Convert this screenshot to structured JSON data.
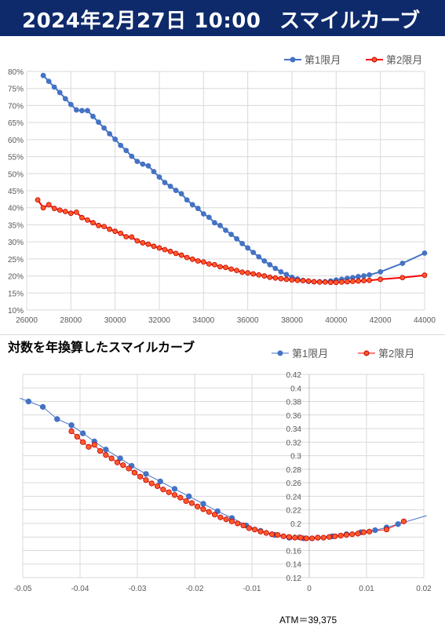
{
  "header": {
    "date": "2024年2月27日 10:00",
    "title": "スマイルカーブ"
  },
  "colors": {
    "series1": "#4472c4",
    "series2": "#ff0000",
    "series2_fill": "#ff5a2a",
    "header_bg": "#0e2a6b"
  },
  "chart_data": [
    {
      "type": "line",
      "title": "",
      "legend_position": "top-right",
      "grid": true,
      "xlim": [
        26000,
        44000
      ],
      "ylim": [
        10,
        80
      ],
      "x_ticks": [
        26000,
        28000,
        30000,
        32000,
        34000,
        36000,
        38000,
        40000,
        42000,
        44000
      ],
      "x_tick_labels": [
        "26000",
        "28000",
        "30000",
        "32000",
        "34000",
        "36000",
        "38000",
        "40000",
        "42000",
        "44000"
      ],
      "y_ticks": [
        10,
        15,
        20,
        25,
        30,
        35,
        40,
        45,
        50,
        55,
        60,
        65,
        70,
        75,
        80
      ],
      "y_tick_labels": [
        "10%",
        "15%",
        "20%",
        "25%",
        "30%",
        "35%",
        "40%",
        "45%",
        "50%",
        "55%",
        "60%",
        "65%",
        "70%",
        "75%",
        "80%"
      ],
      "series": [
        {
          "name": "第1限月",
          "x": [
            26750,
            27000,
            27250,
            27500,
            27750,
            28000,
            28250,
            28500,
            28750,
            29000,
            29250,
            29500,
            29750,
            30000,
            30250,
            30500,
            30750,
            31000,
            31250,
            31500,
            31750,
            32000,
            32250,
            32500,
            32750,
            33000,
            33250,
            33500,
            33750,
            34000,
            34250,
            34500,
            34750,
            35000,
            35250,
            35500,
            35750,
            36000,
            36250,
            36500,
            36750,
            37000,
            37250,
            37500,
            37750,
            38000,
            38250,
            38500,
            38750,
            39000,
            39250,
            39500,
            39750,
            40000,
            40250,
            40500,
            40750,
            41000,
            41250,
            41500,
            42000,
            43000,
            44000
          ],
          "values": [
            78.8,
            77.1,
            75.4,
            73.8,
            72.0,
            70.3,
            68.7,
            68.5,
            68.5,
            66.8,
            65.1,
            63.4,
            61.7,
            60.1,
            58.3,
            56.8,
            55.1,
            53.6,
            52.8,
            52.3,
            50.6,
            49.0,
            47.4,
            46.3,
            45.1,
            44.1,
            42.3,
            40.9,
            39.8,
            38.2,
            37.2,
            35.6,
            34.8,
            33.4,
            32.2,
            30.9,
            29.5,
            28.2,
            26.9,
            25.6,
            24.4,
            23.3,
            22.2,
            21.2,
            20.4,
            19.6,
            19.1,
            18.7,
            18.4,
            18.3,
            18.3,
            18.3,
            18.5,
            18.8,
            19.0,
            19.3,
            19.5,
            19.8,
            20.0,
            20.3,
            21.2,
            23.7,
            26.7
          ]
        },
        {
          "name": "第2限月",
          "x": [
            26500,
            26750,
            27000,
            27250,
            27500,
            27750,
            28000,
            28250,
            28500,
            28750,
            29000,
            29250,
            29500,
            29750,
            30000,
            30250,
            30500,
            30750,
            31000,
            31250,
            31500,
            31750,
            32000,
            32250,
            32500,
            32750,
            33000,
            33250,
            33500,
            33750,
            34000,
            34250,
            34500,
            34750,
            35000,
            35250,
            35500,
            35750,
            36000,
            36250,
            36500,
            36750,
            37000,
            37250,
            37500,
            37750,
            38000,
            38250,
            38500,
            38750,
            39000,
            39250,
            39500,
            39750,
            40000,
            40250,
            40500,
            40750,
            41000,
            41250,
            41500,
            42000,
            43000,
            44000
          ],
          "values": [
            42.3,
            40.0,
            40.9,
            39.8,
            39.3,
            38.9,
            38.4,
            38.7,
            37.1,
            36.4,
            35.6,
            34.8,
            34.5,
            33.7,
            33.1,
            32.5,
            31.5,
            31.4,
            30.3,
            29.7,
            29.3,
            28.7,
            28.2,
            27.7,
            27.2,
            26.6,
            26.1,
            25.4,
            24.9,
            24.4,
            24.1,
            23.5,
            23.3,
            22.7,
            22.5,
            22.0,
            21.6,
            21.1,
            20.9,
            20.6,
            20.3,
            20.0,
            19.6,
            19.4,
            19.2,
            19.0,
            18.8,
            18.7,
            18.6,
            18.5,
            18.3,
            18.2,
            18.2,
            18.1,
            18.1,
            18.2,
            18.3,
            18.4,
            18.5,
            18.6,
            18.7,
            19.0,
            19.5,
            20.2
          ]
        }
      ]
    },
    {
      "type": "line",
      "title": "対数を年換算したスマイルカーブ",
      "legend_position": "top-right",
      "grid": true,
      "xlim": [
        -0.05,
        0.02
      ],
      "ylim": [
        0.12,
        0.42
      ],
      "x_ticks": [
        -0.05,
        -0.04,
        -0.03,
        -0.02,
        -0.01,
        0,
        0.01,
        0.02
      ],
      "x_tick_labels": [
        "-0.05",
        "-0.04",
        "-0.03",
        "-0.02",
        "-0.01",
        "0",
        "0.01",
        "0.02"
      ],
      "y_ticks": [
        0.12,
        0.14,
        0.16,
        0.18,
        0.2,
        0.22,
        0.24,
        0.26,
        0.28,
        0.3,
        0.32,
        0.34,
        0.36,
        0.38,
        0.4,
        0.42
      ],
      "y_tick_labels": [
        "0.12",
        "0.14",
        "0.16",
        "0.18",
        "0.2",
        "0.22",
        "0.24",
        "0.26",
        "0.28",
        "0.3",
        "0.32",
        "0.34",
        "0.36",
        "0.38",
        "0.4",
        "0.42"
      ],
      "series": [
        {
          "name": "第1限月",
          "line_x": [
            -0.0505,
            0.0205
          ],
          "x": [
            -0.049,
            -0.0465,
            -0.044,
            -0.0415,
            -0.0395,
            -0.0375,
            -0.0355,
            -0.033,
            -0.031,
            -0.0285,
            -0.026,
            -0.0235,
            -0.021,
            -0.0185,
            -0.016,
            -0.0135,
            -0.011,
            -0.0085,
            -0.006,
            -0.0035,
            -0.001,
            0.0015,
            0.004,
            0.0065,
            0.009,
            0.0115,
            0.0135,
            0.0155
          ],
          "values": [
            0.38,
            0.372,
            0.354,
            0.345,
            0.333,
            0.321,
            0.309,
            0.296,
            0.285,
            0.273,
            0.262,
            0.251,
            0.24,
            0.229,
            0.218,
            0.208,
            0.197,
            0.189,
            0.183,
            0.179,
            0.178,
            0.179,
            0.181,
            0.184,
            0.187,
            0.19,
            0.194,
            0.199
          ]
        },
        {
          "name": "第2限月",
          "x": [
            -0.0415,
            -0.0405,
            -0.0395,
            -0.0385,
            -0.0375,
            -0.0365,
            -0.0355,
            -0.0345,
            -0.0335,
            -0.0325,
            -0.0315,
            -0.0305,
            -0.0295,
            -0.0285,
            -0.0275,
            -0.0265,
            -0.0255,
            -0.0245,
            -0.0235,
            -0.0225,
            -0.0215,
            -0.0205,
            -0.0195,
            -0.0185,
            -0.0175,
            -0.0165,
            -0.0155,
            -0.0145,
            -0.0135,
            -0.0125,
            -0.0115,
            -0.0105,
            -0.0095,
            -0.0085,
            -0.0075,
            -0.0065,
            -0.0055,
            -0.0045,
            -0.0035,
            -0.0025,
            -0.0015,
            -0.0005,
            0.0005,
            0.0015,
            0.0025,
            0.0035,
            0.0045,
            0.0055,
            0.0065,
            0.0075,
            0.0085,
            0.0095,
            0.0105,
            0.0135,
            0.0165
          ],
          "values": [
            0.336,
            0.328,
            0.32,
            0.313,
            0.316,
            0.307,
            0.301,
            0.296,
            0.29,
            0.286,
            0.281,
            0.275,
            0.269,
            0.264,
            0.259,
            0.255,
            0.25,
            0.246,
            0.242,
            0.238,
            0.233,
            0.23,
            0.225,
            0.221,
            0.217,
            0.213,
            0.209,
            0.206,
            0.203,
            0.2,
            0.197,
            0.193,
            0.191,
            0.188,
            0.186,
            0.184,
            0.183,
            0.181,
            0.18,
            0.179,
            0.179,
            0.178,
            0.178,
            0.179,
            0.179,
            0.18,
            0.181,
            0.182,
            0.183,
            0.184,
            0.185,
            0.187,
            0.188,
            0.191,
            0.203
          ]
        }
      ]
    }
  ],
  "chart2_footer": "ATM＝39,375"
}
